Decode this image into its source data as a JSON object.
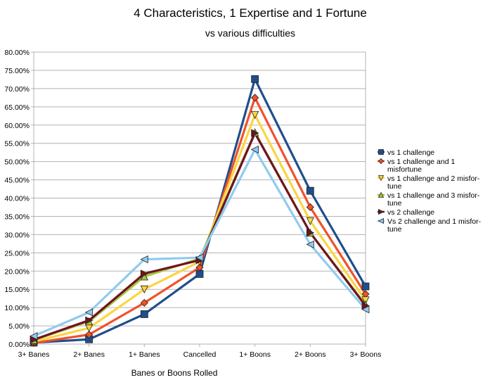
{
  "chart_data": {
    "type": "line",
    "title": "4 Characteristics, 1 Expertise and 1 Fortune",
    "subtitle": "vs various difficulties",
    "xlabel": "Banes or Boons Rolled",
    "ylabel": "",
    "categories": [
      "3+ Banes",
      "2+ Banes",
      "1+ Banes",
      "Cancelled",
      "1+ Boons",
      "2+ Boons",
      "3+ Boons"
    ],
    "ylim": [
      0,
      0.8
    ],
    "y_ticks": [
      "0.00%",
      "5.00%",
      "10.00%",
      "15.00%",
      "20.00%",
      "25.00%",
      "30.00%",
      "35.00%",
      "40.00%",
      "45.00%",
      "50.00%",
      "55.00%",
      "60.00%",
      "65.00%",
      "70.00%",
      "75.00%",
      "80.00%"
    ],
    "grid": true,
    "legend_position": "right",
    "series": [
      {
        "name": "vs 1 challenge",
        "legend_lines": [
          "vs 1 challenge"
        ],
        "color": "#1f4e8c",
        "marker": "square",
        "values": [
          0.004,
          0.013,
          0.082,
          0.192,
          0.726,
          0.42,
          0.158
        ]
      },
      {
        "name": "vs 1 challenge and 1 misfortune",
        "legend_lines": [
          "vs 1 challenge and 1",
          "misfortune"
        ],
        "color": "#f0522a",
        "marker": "diamond",
        "values": [
          0.003,
          0.026,
          0.113,
          0.21,
          0.675,
          0.375,
          0.137
        ]
      },
      {
        "name": "vs 1 challenge and 2 misfortune",
        "legend_lines": [
          "vs 1 challenge and 2 misfor-",
          "tune"
        ],
        "color": "#fdd441",
        "marker": "triangle-down",
        "values": [
          0.007,
          0.044,
          0.15,
          0.226,
          0.628,
          0.337,
          0.12
        ]
      },
      {
        "name": "vs 1 challenge and 3 misfortune",
        "legend_lines": [
          "vs 1 challenge and 3 misfor-",
          "tune"
        ],
        "color": "#a8c43a",
        "marker": "triangle-up",
        "values": [
          0.011,
          0.062,
          0.185,
          0.234,
          0.58,
          0.305,
          0.108
        ]
      },
      {
        "name": "vs 2 challenge",
        "legend_lines": [
          "vs 2 challenge"
        ],
        "color": "#6f1420",
        "marker": "triangle-right",
        "values": [
          0.012,
          0.065,
          0.193,
          0.23,
          0.578,
          0.305,
          0.105
        ]
      },
      {
        "name": "Vs 2 challenge and 1 misfortune",
        "legend_lines": [
          "Vs 2 challenge and 1 misfor-",
          "tune"
        ],
        "color": "#8fcbf0",
        "marker": "triangle-left",
        "values": [
          0.022,
          0.087,
          0.232,
          0.237,
          0.533,
          0.273,
          0.095
        ]
      }
    ]
  }
}
